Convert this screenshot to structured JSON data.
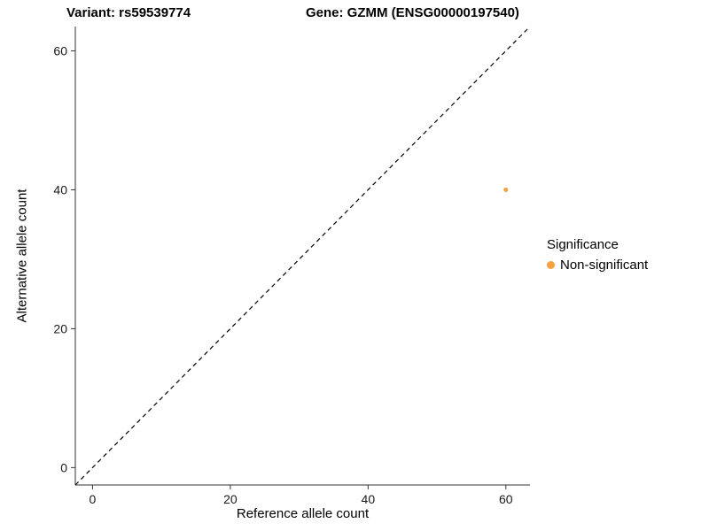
{
  "titles": {
    "variant": "Variant: rs59539774",
    "gene": "Gene: GZMM (ENSG00000197540)"
  },
  "chart_data": {
    "type": "scatter",
    "title_left": "Variant: rs59539774",
    "title_right": "Gene: GZMM (ENSG00000197540)",
    "xlabel": "Reference allele count",
    "ylabel": "Alternative allele count",
    "xlim": [
      -2.5,
      63.5
    ],
    "ylim": [
      -2.5,
      63.5
    ],
    "xticks": [
      0,
      20,
      40,
      60
    ],
    "yticks": [
      0,
      20,
      40,
      60
    ],
    "grid": false,
    "reference_line": {
      "style": "dashed",
      "color": "#000000",
      "from": [
        -2.5,
        -2.5
      ],
      "to": [
        63.5,
        63.5
      ]
    },
    "series": [
      {
        "name": "Non-significant",
        "color": "#F9A03F",
        "point_radius": 2.5,
        "points": [
          [
            60,
            40
          ]
        ]
      }
    ],
    "legend": {
      "title": "Significance",
      "position": "right",
      "entries": [
        {
          "label": "Non-significant",
          "color": "#F9A03F"
        }
      ]
    }
  },
  "colors": {
    "axis_line": "#333333",
    "tick_text": "#1a1a1a",
    "background": "#ffffff"
  }
}
